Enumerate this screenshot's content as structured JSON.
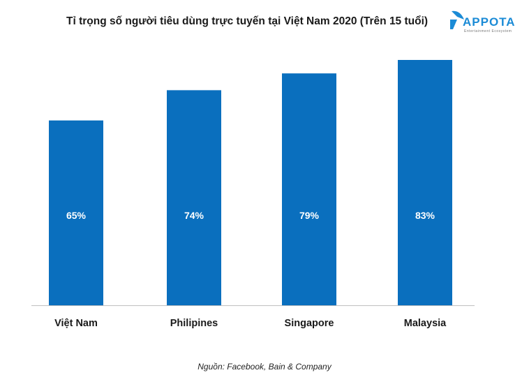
{
  "chart_data": {
    "type": "bar",
    "title": "Tỉ trọng số người tiêu dùng trực tuyến tại Việt Nam 2020 (Trên 15 tuổi)",
    "categories": [
      "Việt Nam",
      "Philipines",
      "Singapore",
      "Malaysia"
    ],
    "values": [
      65,
      74,
      79,
      83
    ],
    "data_labels": [
      "65%",
      "74%",
      "79%",
      "83%"
    ],
    "xlabel": "",
    "ylabel": "",
    "ylim": [
      10,
      85
    ],
    "grid": false,
    "bar_color": "#0a6fbe"
  },
  "source": "Nguồn: Facebook, Bain & Company",
  "logo": {
    "name": "APPOTA",
    "tagline": "Entertainment Ecosystem",
    "color": "#1b8bd6"
  }
}
